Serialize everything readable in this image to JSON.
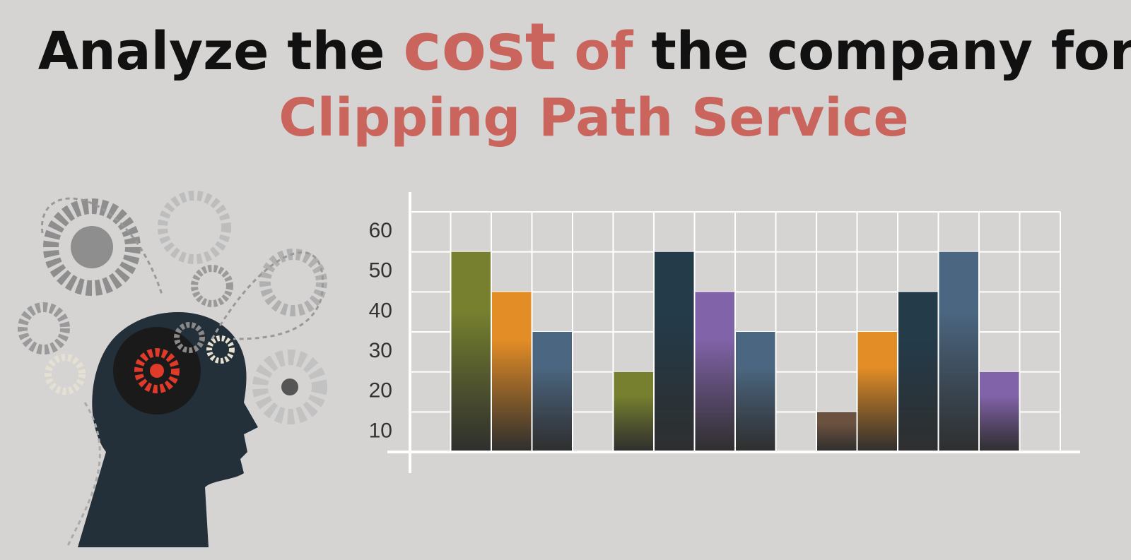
{
  "chart_data": {
    "type": "bar",
    "title": [
      "Analyze the",
      "cost",
      "of",
      "the company for"
    ],
    "subtitle": "Clipping Path Service",
    "categories": [
      null,
      null,
      null,
      null,
      null,
      null,
      null,
      null,
      null,
      null,
      null,
      null,
      null,
      null,
      null,
      null
    ],
    "values": [
      null,
      50,
      40,
      30,
      null,
      20,
      50,
      40,
      30,
      null,
      10,
      30,
      40,
      50,
      20,
      null
    ],
    "colors": [
      null,
      "#76802f",
      "#e38d26",
      "#4b6680",
      null,
      "#76802f",
      "#243b4a",
      "#8063a8",
      "#4b6680",
      null,
      "#6b5140",
      "#e38d26",
      "#243b4a",
      "#4b6680",
      "#8063a8",
      null
    ],
    "ylim": [
      0,
      60
    ],
    "yticks": [
      10,
      20,
      30,
      40,
      50,
      60
    ],
    "grid": true
  }
}
